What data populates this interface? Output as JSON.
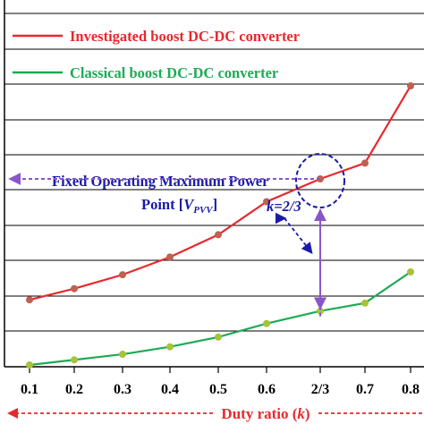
{
  "chart_data": {
    "type": "line",
    "x_tick_labels": [
      "0.1",
      "0.2",
      "0.3",
      "0.4",
      "0.5",
      "0.6",
      "2/3",
      "0.7",
      "0.8"
    ],
    "xlabel": "Duty ratio (k)",
    "xlabel_main": "Duty ratio (",
    "xlabel_var": "k",
    "xlabel_close": ")",
    "grid": "horizontal",
    "legend_placement": "top",
    "series": [
      {
        "name": "Investigated boost DC-DC converter",
        "color": "#e8282d",
        "x": [
          0.1,
          0.2,
          0.3,
          0.4,
          0.5,
          0.6,
          0.667,
          0.7,
          0.8
        ],
        "y": [
          1.4,
          1.64,
          1.94,
          2.32,
          2.8,
          3.51,
          4.0,
          4.34,
          6.0
        ]
      },
      {
        "name": "Classical boost DC-DC converter",
        "color": "#1eaa55",
        "x": [
          0.1,
          0.2,
          0.3,
          0.4,
          0.5,
          0.6,
          0.667,
          0.7,
          0.8
        ],
        "y": [
          0.0,
          0.11,
          0.23,
          0.39,
          0.6,
          0.89,
          1.16,
          1.33,
          2.0
        ]
      }
    ],
    "annotation": {
      "line1": "Fixed Operating Maximum Power",
      "line2_prefix": "Point  [",
      "line2_var": "V",
      "line2_sub": "PVV",
      "line2_suffix": "]",
      "k_label": "k=2/3",
      "color": "#1a1aa8",
      "operating_point": {
        "x": 0.667,
        "y": 4.0
      },
      "classical_point": {
        "x": 0.667,
        "y": 1.16
      }
    },
    "marker_color": "#c06050",
    "marker_color_green": "#a8c23a",
    "arrow_color": "#8a55c8"
  }
}
